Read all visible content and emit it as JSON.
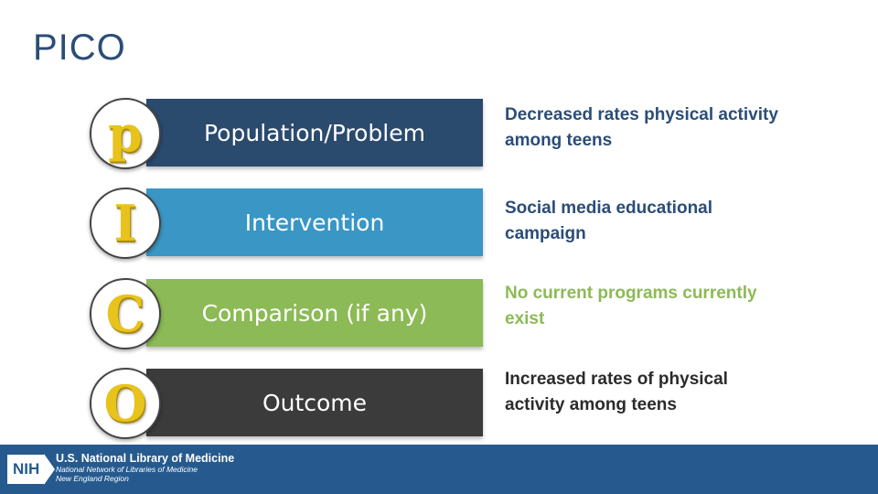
{
  "slide": {
    "title": "PICO"
  },
  "rows": [
    {
      "letter": "p",
      "label": "Population/Problem",
      "description": "Decreased rates physical activity among teens"
    },
    {
      "letter": "I",
      "label": "Intervention",
      "description": "Social media educational campaign"
    },
    {
      "letter": "C",
      "label": "Comparison (if any)",
      "description": "No current programs currently exist"
    },
    {
      "letter": "O",
      "label": "Outcome",
      "description": "Increased rates of physical activity among teens"
    }
  ],
  "footer": {
    "logo_text": "NIH",
    "org_name": "U.S. National Library of Medicine",
    "network_line": "National Network of Libraries of Medicine",
    "region_line": "New England Region"
  },
  "colors": {
    "title": "#2b4d77",
    "band_population": "#2a4a6e",
    "band_intervention": "#3a96c4",
    "band_comparison": "#8cba56",
    "band_outcome": "#3b3b3b",
    "footer": "#265a8e"
  }
}
